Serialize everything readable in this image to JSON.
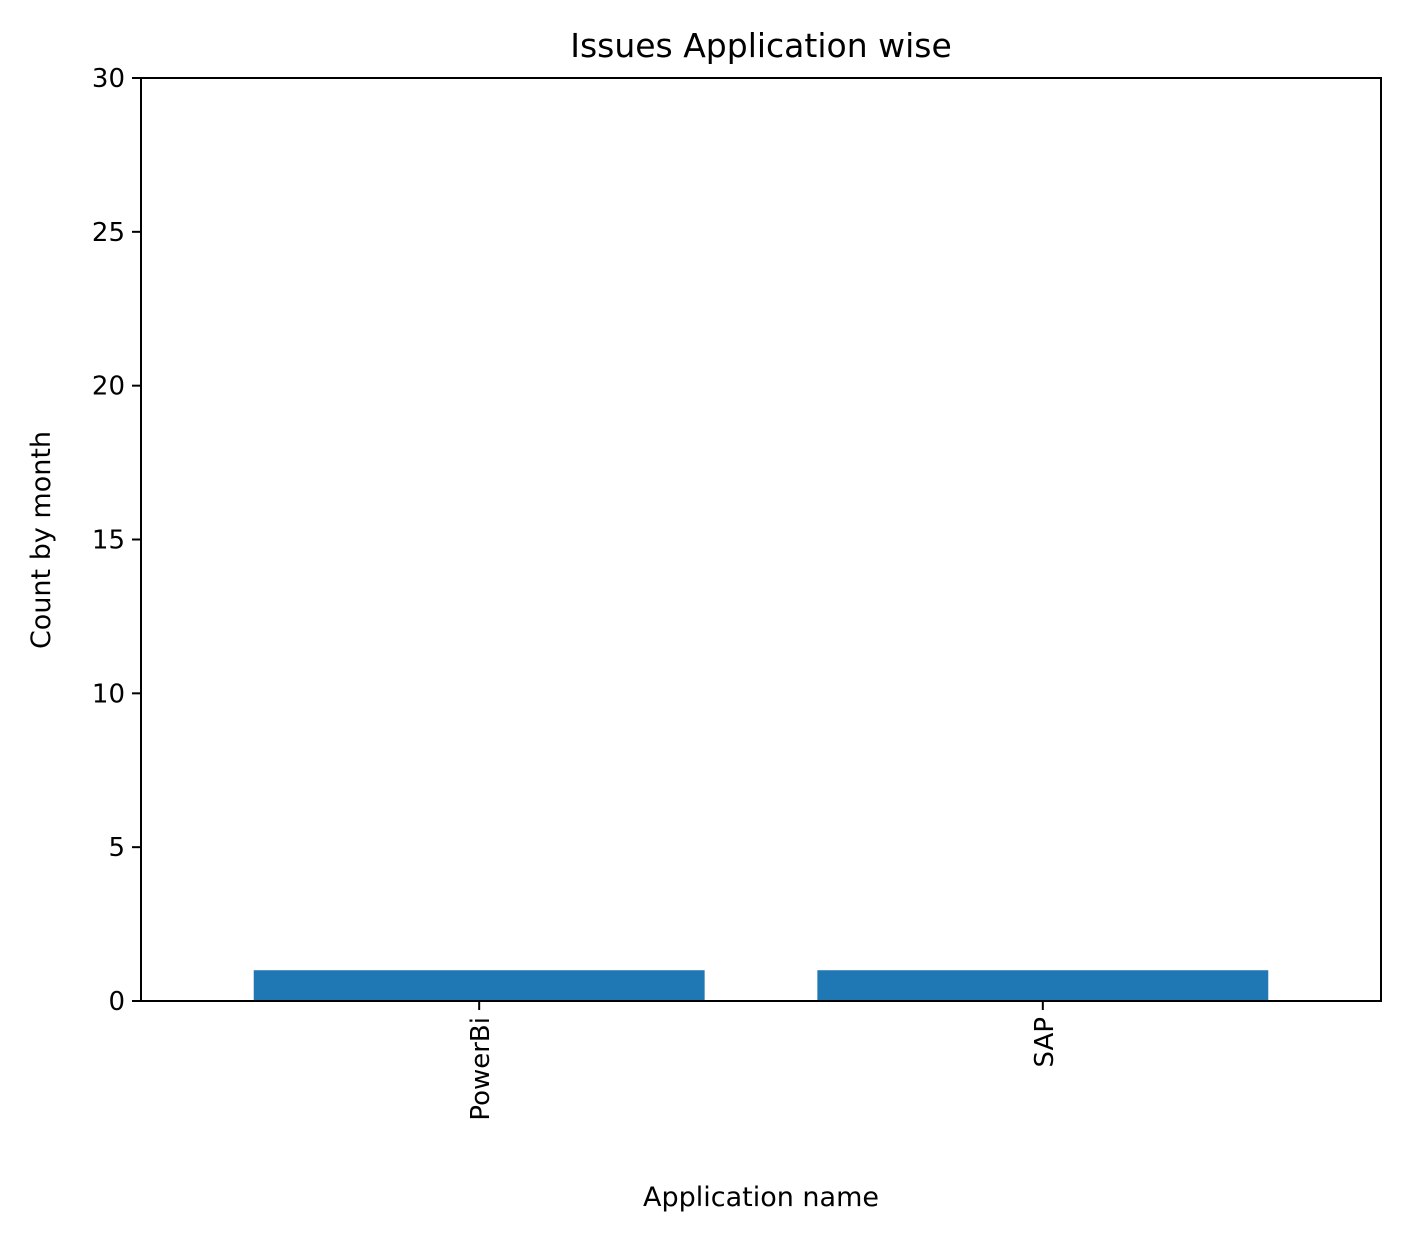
{
  "chart_data": {
    "type": "bar",
    "title": "Issues Application wise",
    "xlabel": "Application name",
    "ylabel": "Count by month",
    "categories": [
      "PowerBi",
      "SAP"
    ],
    "values": [
      1,
      1
    ],
    "ylim": [
      0,
      30
    ],
    "yticks": [
      "0",
      "5",
      "10",
      "15",
      "20",
      "25",
      "30"
    ],
    "xtick_rotation": "vertical",
    "grid": false,
    "bar_color": "#1f77b4"
  }
}
